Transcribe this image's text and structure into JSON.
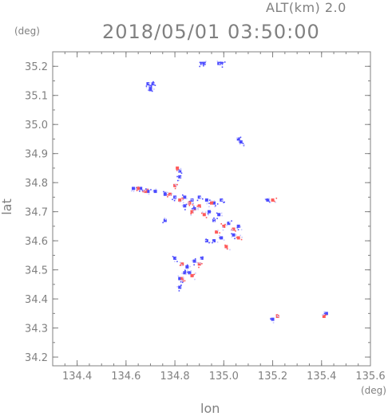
{
  "header": {
    "altitude_text": "ALT(km) 2.0",
    "timestamp": "2018/05/01 03:50:00"
  },
  "axes": {
    "lat_unit": "(deg)",
    "lon_unit": "(deg)",
    "xlabel": "lon",
    "ylabel": "lat"
  },
  "colors": {
    "axis": "#808080",
    "negative": "#4b4bff",
    "positive": "#ff5a5a",
    "faint": "#c8c8ff"
  },
  "chart_data": {
    "type": "scatter",
    "title": "2018/05/01 03:50:00",
    "xlabel": "lon",
    "ylabel": "lat",
    "xlim": [
      134.3,
      135.6
    ],
    "ylim": [
      34.17,
      35.25
    ],
    "xticks": [
      134.4,
      134.6,
      134.8,
      135.0,
      135.2,
      135.4,
      135.6
    ],
    "yticks": [
      34.2,
      34.3,
      34.4,
      34.5,
      34.6,
      34.7,
      34.8,
      34.9,
      35.0,
      35.1,
      35.2
    ],
    "grid": false,
    "series": [
      {
        "color": "blue",
        "points": [
          [
            134.91,
            35.21
          ],
          [
            134.92,
            35.21
          ],
          [
            134.98,
            35.21
          ],
          [
            134.99,
            35.21
          ],
          [
            134.69,
            35.14
          ],
          [
            134.7,
            35.13
          ],
          [
            134.71,
            35.14
          ],
          [
            134.7,
            35.12
          ],
          [
            135.06,
            34.95
          ],
          [
            135.07,
            34.94
          ],
          [
            134.82,
            34.84
          ],
          [
            134.82,
            34.82
          ],
          [
            134.63,
            34.78
          ],
          [
            134.66,
            34.78
          ],
          [
            134.69,
            34.77
          ],
          [
            134.72,
            34.77
          ],
          [
            134.76,
            34.76
          ],
          [
            134.8,
            34.75
          ],
          [
            134.84,
            34.75
          ],
          [
            134.87,
            34.74
          ],
          [
            134.9,
            34.75
          ],
          [
            134.93,
            34.74
          ],
          [
            134.96,
            34.73
          ],
          [
            134.99,
            34.74
          ],
          [
            134.84,
            34.72
          ],
          [
            134.88,
            34.71
          ],
          [
            134.94,
            34.7
          ],
          [
            134.98,
            34.69
          ],
          [
            134.76,
            34.67
          ],
          [
            134.96,
            34.67
          ],
          [
            135.02,
            34.66
          ],
          [
            135.06,
            34.65
          ],
          [
            135.04,
            34.62
          ],
          [
            134.93,
            34.6
          ],
          [
            134.96,
            34.6
          ],
          [
            134.99,
            34.61
          ],
          [
            134.8,
            34.54
          ],
          [
            134.85,
            34.51
          ],
          [
            134.88,
            34.53
          ],
          [
            134.91,
            34.54
          ],
          [
            134.84,
            34.49
          ],
          [
            134.86,
            34.49
          ],
          [
            134.82,
            34.47
          ],
          [
            134.82,
            34.44
          ],
          [
            135.18,
            34.74
          ],
          [
            135.2,
            34.33
          ],
          [
            135.42,
            34.35
          ]
        ]
      },
      {
        "color": "red",
        "points": [
          [
            134.81,
            34.85
          ],
          [
            134.8,
            34.79
          ],
          [
            134.65,
            34.78
          ],
          [
            134.68,
            34.77
          ],
          [
            134.78,
            34.76
          ],
          [
            134.82,
            34.74
          ],
          [
            134.86,
            34.73
          ],
          [
            134.9,
            34.72
          ],
          [
            134.95,
            34.73
          ],
          [
            134.87,
            34.7
          ],
          [
            134.92,
            34.69
          ],
          [
            135.0,
            34.65
          ],
          [
            135.04,
            34.64
          ],
          [
            135.06,
            34.61
          ],
          [
            135.01,
            34.58
          ],
          [
            134.9,
            34.52
          ],
          [
            134.87,
            34.48
          ],
          [
            134.83,
            34.47
          ],
          [
            135.2,
            34.74
          ],
          [
            135.22,
            34.34
          ],
          [
            135.41,
            34.34
          ],
          [
            134.83,
            34.52
          ],
          [
            134.97,
            34.63
          ]
        ]
      }
    ]
  }
}
